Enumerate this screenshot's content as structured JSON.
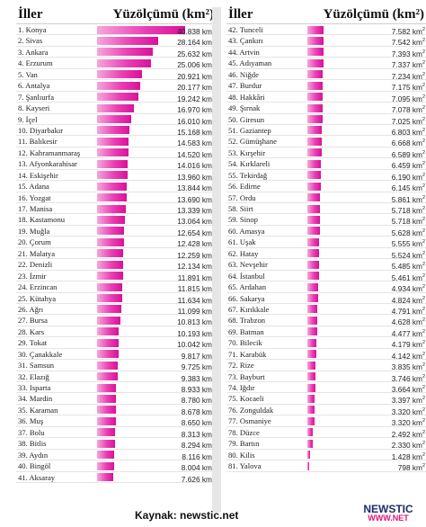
{
  "header": {
    "col_left": "İller",
    "col_right": "Yüzölçümü (km²)"
  },
  "unit": "km²",
  "source": "Kaynak: newstic.net",
  "logo": {
    "line1": "NEWSTIC",
    "line2": "WWW.NET"
  },
  "colors": {
    "bar_light": "#f7a6dc",
    "bar_dark": "#d9119a"
  },
  "chart_data": {
    "type": "bar",
    "orientation": "horizontal",
    "xlim": [
      0,
      40838
    ],
    "categories": [
      "1. Konya",
      "2. Sivas",
      "3. Ankara",
      "4. Erzurum",
      "5. Van",
      "6. Antalya",
      "7. Şanlıurfa",
      "8. Kayseri",
      "9. İçel",
      "10. Diyarbakır",
      "11. Balıkesir",
      "12. Kahramanmaraş",
      "13. Afyonkarahisar",
      "14. Eskişehir",
      "15. Adana",
      "16. Yozgat",
      "17. Manisa",
      "18. Kastamonu",
      "19. Muğla",
      "20. Çorum",
      "21. Malatya",
      "22. Denizli",
      "23. İzmir",
      "24. Erzincan",
      "25. Kütahya",
      "26. Ağrı",
      "27. Bursa",
      "28. Kars",
      "29. Tokat",
      "30. Çanakkale",
      "31. Samsun",
      "32. Elazığ",
      "33. Isparta",
      "34. Mardin",
      "35. Karaman",
      "36. Muş",
      "37. Bolu",
      "38. Bitlis",
      "39. Aydın",
      "40. Bingöl",
      "41. Aksaray",
      "42. Tunceli",
      "43. Çankırı",
      "44. Artvin",
      "45. Adıyaman",
      "46. Niğde",
      "47. Burdur",
      "48. Hakkâri",
      "49. Şırnak",
      "50. Giresun",
      "51. Gaziantep",
      "52. Gümüşhane",
      "53. Kırşehir",
      "54. Kırklareli",
      "55. Tekirdağ",
      "56. Edirne",
      "57. Ordu",
      "58. Siirt",
      "59. Sinop",
      "60. Amasya",
      "61. Uşak",
      "62. Hatay",
      "63. Nevşehir",
      "64. İstanbul",
      "65. Ardahan",
      "66. Sakarya",
      "67. Kırıkkale",
      "68. Trabzon",
      "69. Batman",
      "70. Bilecik",
      "71. Karabük",
      "72. Rize",
      "73. Bayburt",
      "74. Iğdır",
      "75. Kocaeli",
      "76. Zonguldak",
      "77. Osmaniye",
      "78. Düzce",
      "79. Bartın",
      "80. Kilis",
      "81. Yalova"
    ],
    "values": [
      40838,
      28164,
      25632,
      25006,
      20921,
      20177,
      19242,
      16970,
      16010,
      15168,
      14583,
      14520,
      14016,
      13960,
      13844,
      13690,
      13339,
      13064,
      12654,
      12428,
      12259,
      12134,
      11891,
      11815,
      11634,
      11099,
      10813,
      10193,
      10042,
      9817,
      9725,
      9383,
      8933,
      8780,
      8678,
      8650,
      8313,
      8294,
      8116,
      8004,
      7626,
      7582,
      7542,
      7393,
      7337,
      7234,
      7175,
      7095,
      7078,
      7025,
      6803,
      6668,
      6589,
      6459,
      6190,
      6145,
      5861,
      5718,
      5718,
      5628,
      5555,
      5524,
      5485,
      5461,
      4934,
      4824,
      4791,
      4628,
      4477,
      4179,
      4142,
      3835,
      3746,
      3664,
      3397,
      3320,
      3320,
      2492,
      2330,
      1428,
      798
    ],
    "labels": [
      "40.838",
      "28.164",
      "25.632",
      "25.006",
      "20.921",
      "20.177",
      "19.242",
      "16.970",
      "16.010",
      "15.168",
      "14.583",
      "14.520",
      "14.016",
      "13.960",
      "13.844",
      "13.690",
      "13.339",
      "13.064",
      "12.654",
      "12.428",
      "12.259",
      "12.134",
      "11.891",
      "11.815",
      "11.634",
      "11.099",
      "10.813",
      "10.193",
      "10.042",
      "9.817",
      "9.725",
      "9.383",
      "8.933",
      "8.780",
      "8.678",
      "8.650",
      "8.313",
      "8.294",
      "8.116",
      "8.004",
      "7.626",
      "7.582",
      "7.542",
      "7.393",
      "7.337",
      "7.234",
      "7.175",
      "7.095",
      "7.078",
      "7.025",
      "6.803",
      "6.668",
      "6.589",
      "6.459",
      "6.190",
      "6.145",
      "5.861",
      "5.718",
      "5.718",
      "5.628",
      "5.555",
      "5.524",
      "5.485",
      "5.461",
      "4.934",
      "4.824",
      "4.791",
      "4.628",
      "4.477",
      "4.179",
      "4.142",
      "3.835",
      "3.746",
      "3.664",
      "3.397",
      "3.320",
      "3.320",
      "2.492",
      "2.330",
      "1.428",
      "798"
    ]
  }
}
